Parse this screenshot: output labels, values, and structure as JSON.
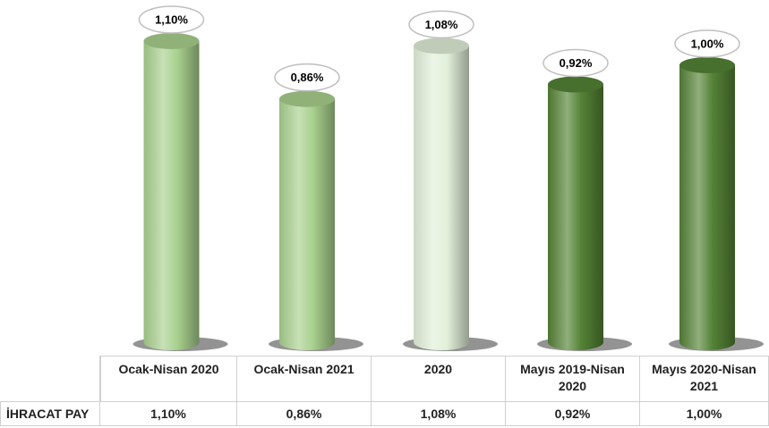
{
  "chart_data": {
    "type": "bar",
    "categories": [
      "Ocak-Nisan 2020",
      "Ocak-Nisan 2021",
      "2020",
      "Mayıs 2019-Nisan 2020",
      "Mayıs 2020-Nisan 2021"
    ],
    "series": [
      {
        "name": "İHRACAT PAY",
        "values": [
          1.1,
          0.86,
          1.08,
          0.92,
          1.0
        ],
        "value_labels": [
          "1,10%",
          "0,86%",
          "1,08%",
          "0,92%",
          "1,00%"
        ],
        "colors": [
          "#a9d18e",
          "#a9d18e",
          "#e2f0d9",
          "#548235",
          "#548235"
        ]
      }
    ],
    "ylim": [
      -0.15,
      1.2
    ]
  }
}
